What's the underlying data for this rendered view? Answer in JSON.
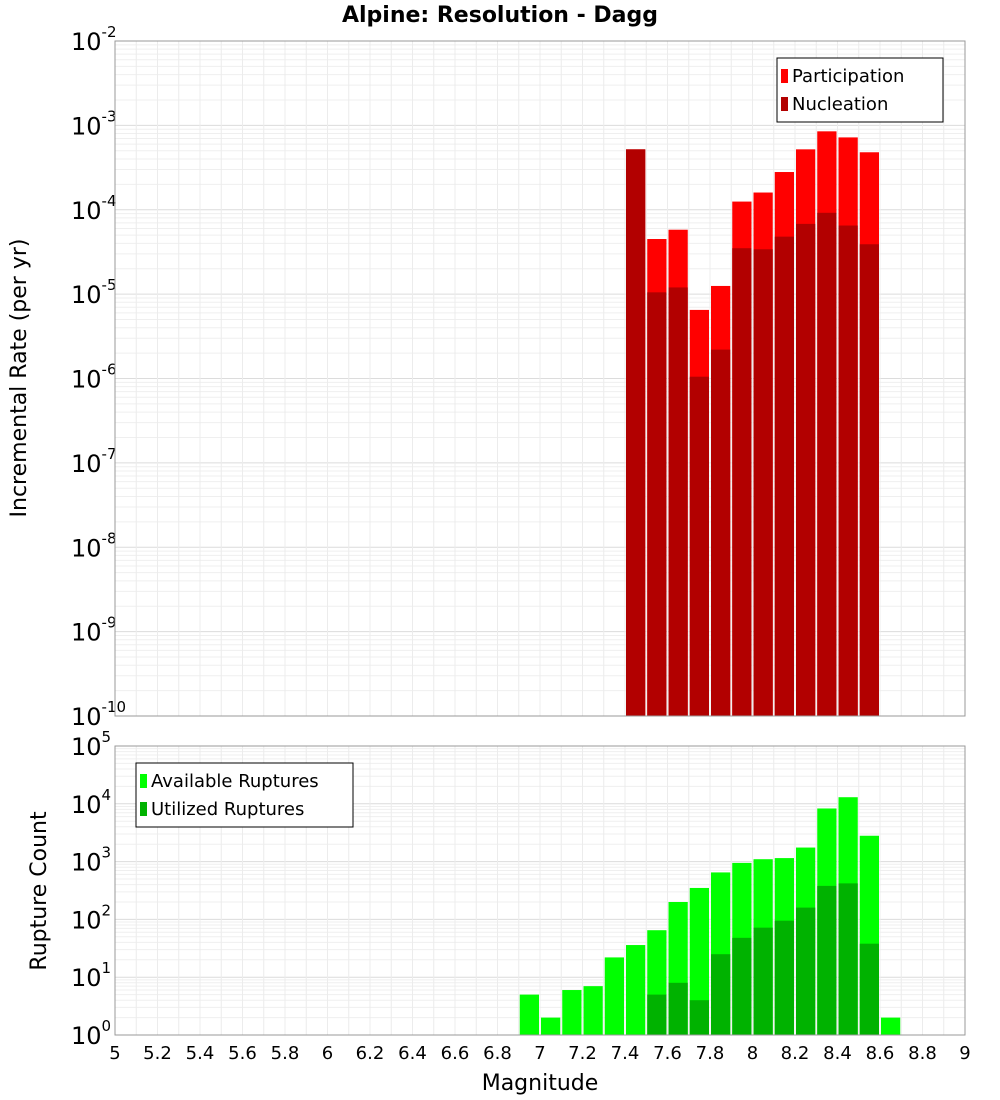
{
  "chart_data": {
    "title": "Alpine: Resolution - Dagg",
    "xlabel": "Magnitude",
    "xlim": [
      5,
      9
    ],
    "x_ticks": [
      "5",
      "5.2",
      "5.4",
      "5.6",
      "5.8",
      "6",
      "6.2",
      "6.4",
      "6.6",
      "6.8",
      "7",
      "7.2",
      "7.4",
      "7.6",
      "7.8",
      "8",
      "8.2",
      "8.4",
      "8.6",
      "8.8",
      "9"
    ],
    "bin_width": 0.1,
    "panels": [
      {
        "type": "bar",
        "scale": "log",
        "ylabel": "Incremental Rate (per yr)",
        "ylim_exp": [
          -10,
          -2
        ],
        "grid": true,
        "legend_position": "top-right",
        "colors": {
          "Participation": "#ff0000",
          "Nucleation": "#b20000"
        },
        "series": [
          {
            "name": "Participation",
            "x": [
              7.45,
              7.55,
              7.65,
              7.75,
              7.85,
              7.95,
              8.05,
              8.15,
              8.25,
              8.35,
              8.45,
              8.55
            ],
            "values": [
              0.00052,
              4.5e-05,
              5.8e-05,
              6.5e-06,
              1.25e-05,
              0.000125,
              0.00016,
              0.00028,
              0.00052,
              0.00085,
              0.00072,
              0.00048
            ]
          },
          {
            "name": "Nucleation",
            "x": [
              7.45,
              7.55,
              7.65,
              7.75,
              7.85,
              7.95,
              8.05,
              8.15,
              8.25,
              8.35,
              8.45,
              8.55
            ],
            "values": [
              0.00052,
              1.05e-05,
              1.2e-05,
              1.05e-06,
              2.2e-06,
              3.5e-05,
              3.4e-05,
              4.8e-05,
              6.8e-05,
              9.2e-05,
              6.5e-05,
              3.9e-05
            ]
          }
        ]
      },
      {
        "type": "bar",
        "scale": "log",
        "ylabel": "Rupture Count",
        "ylim_exp": [
          0,
          5
        ],
        "grid": true,
        "legend_position": "top-left",
        "colors": {
          "Available Ruptures": "#00ff00",
          "Utilized Ruptures": "#00b200"
        },
        "series": [
          {
            "name": "Available Ruptures",
            "x": [
              6.95,
              7.05,
              7.15,
              7.25,
              7.35,
              7.45,
              7.55,
              7.65,
              7.75,
              7.85,
              7.95,
              8.05,
              8.15,
              8.25,
              8.35,
              8.45,
              8.55,
              8.65
            ],
            "values": [
              5,
              2,
              6,
              7,
              22,
              36,
              65,
              200,
              350,
              650,
              950,
              1100,
              1150,
              1750,
              8300,
              13000,
              2800,
              2
            ]
          },
          {
            "name": "Utilized Ruptures",
            "x": [
              7.45,
              7.55,
              7.65,
              7.75,
              7.85,
              7.95,
              8.05,
              8.15,
              8.25,
              8.35,
              8.45,
              8.55
            ],
            "values": [
              1,
              5,
              8,
              4,
              25,
              48,
              72,
              95,
              160,
              380,
              420,
              38
            ]
          }
        ]
      }
    ]
  }
}
